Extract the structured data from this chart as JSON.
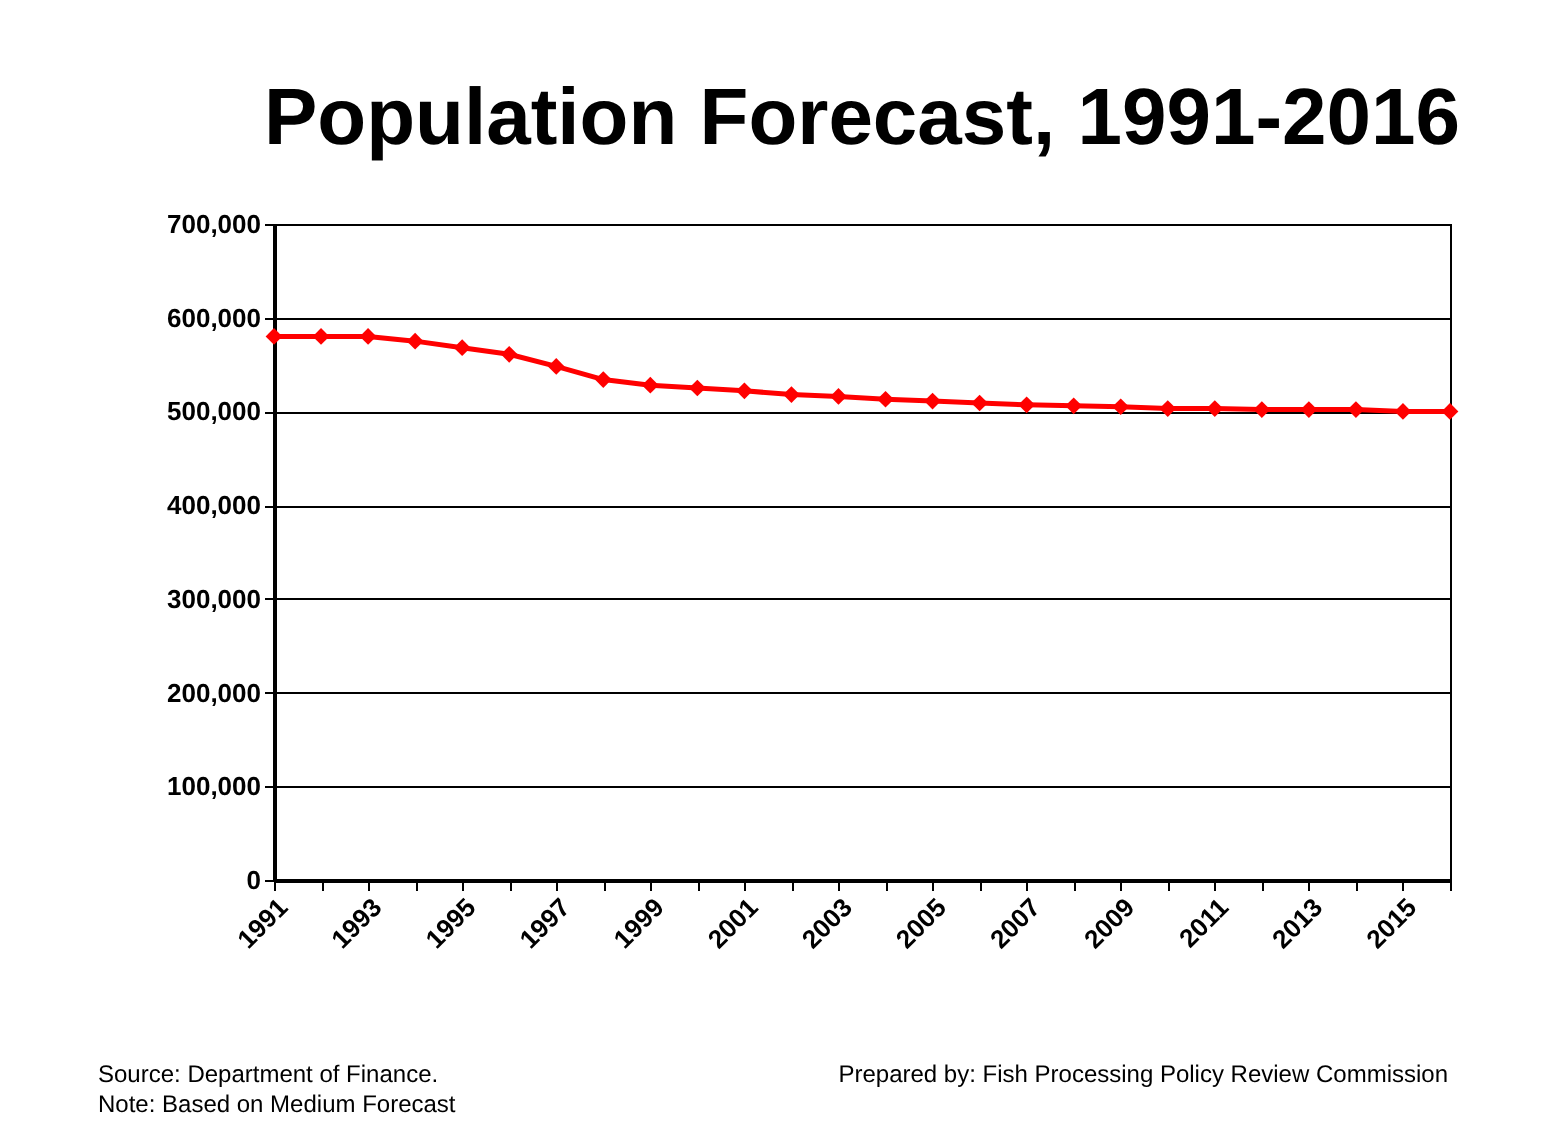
{
  "chart_data": {
    "type": "line",
    "title": "Population Forecast, 1991-2016",
    "categories": [
      "1991",
      null,
      "1993",
      null,
      "1995",
      null,
      "1997",
      null,
      "1999",
      null,
      "2001",
      null,
      "2003",
      null,
      "2005",
      null,
      "2007",
      null,
      "2009",
      null,
      "2011",
      null,
      "2013",
      null,
      "2015",
      null
    ],
    "series": [
      {
        "color": "#ff0000",
        "values": [
          580000,
          580000,
          580000,
          575000,
          568000,
          561000,
          548000,
          534000,
          528000,
          525000,
          522000,
          518000,
          516000,
          513000,
          511000,
          509000,
          507000,
          506000,
          505000,
          503000,
          503000,
          502000,
          502000,
          502000,
          500000,
          500000
        ]
      }
    ],
    "ylim": [
      0,
      700000
    ],
    "yticks": [
      {
        "value": 0,
        "label": "0"
      },
      {
        "value": 100000,
        "label": "100,000"
      },
      {
        "value": 200000,
        "label": "200,000"
      },
      {
        "value": 300000,
        "label": "300,000"
      },
      {
        "value": 400000,
        "label": "400,000"
      },
      {
        "value": 500000,
        "label": "500,000"
      },
      {
        "value": 600000,
        "label": "600,000"
      },
      {
        "value": 700000,
        "label": "700,000"
      }
    ],
    "grid": "y",
    "legend": false,
    "marker": "diamond",
    "line_style": "solid",
    "annotations": [
      "Source: Department of Finance.",
      "Note: Based on Medium Forecast",
      "Prepared by: Fish Processing Policy Review Commission"
    ]
  }
}
